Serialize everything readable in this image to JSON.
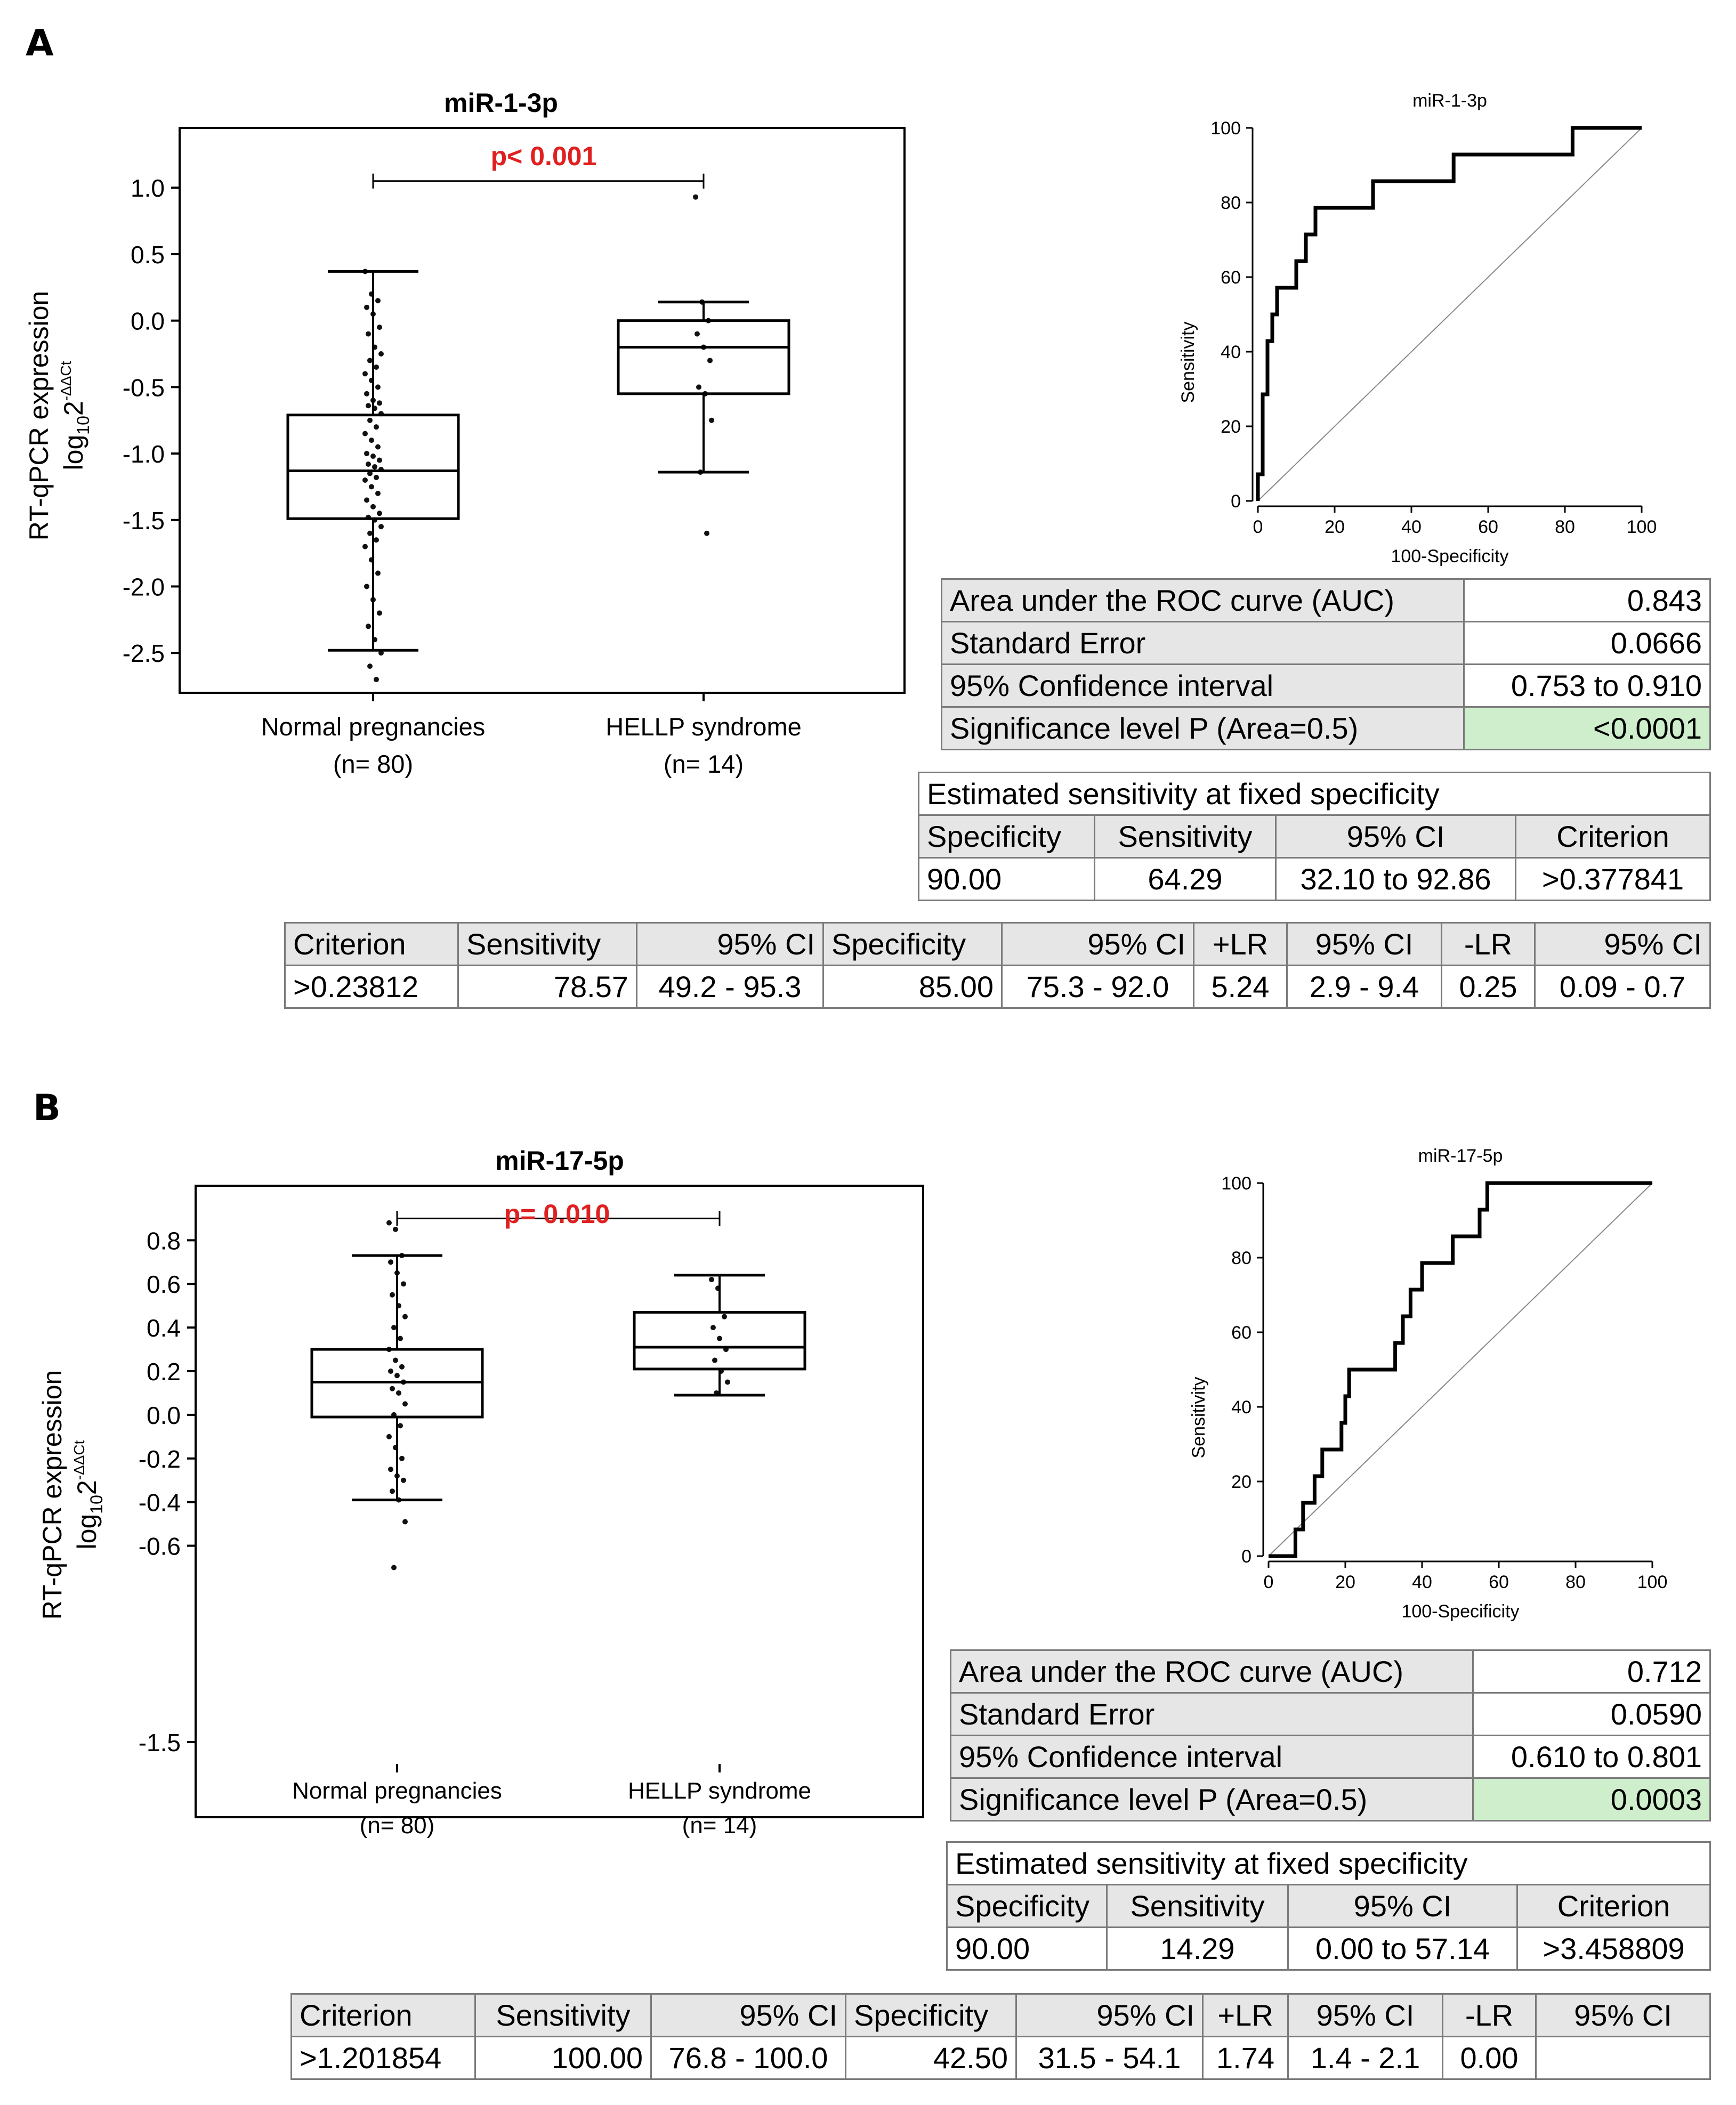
{
  "panels": [
    {
      "letter": "A",
      "box": {
        "title": "miR-1-3p",
        "pvalue": "p< 0.001",
        "ylabel_line1": "RT-qPCR expression",
        "ylabel_log": "log",
        "ylabel_sub": "10",
        "ylabel_base": "2",
        "ylabel_sup": "-ΔΔCt",
        "groups": [
          {
            "name": "Normal pregnancies",
            "n": "(n= 80)"
          },
          {
            "name": "HELLP syndrome",
            "n": "(n= 14)"
          }
        ]
      },
      "roc": {
        "title": "miR-1-3p",
        "xlabel": "100-Specificity",
        "ylabel": "Sensitivity"
      },
      "summary": [
        [
          "Area under the ROC curve (AUC)",
          "0.843"
        ],
        [
          "Standard Error",
          "0.0666"
        ],
        [
          "95% Confidence interval",
          "0.753 to 0.910"
        ],
        [
          "Significance level P (Area=0.5)",
          "<0.0001"
        ]
      ],
      "fixed": {
        "title": "Estimated sensitivity at fixed specificity",
        "headers": [
          "Specificity",
          "Sensitivity",
          "95% CI",
          "Criterion"
        ],
        "row": [
          "90.00",
          "64.29",
          "32.10 to 92.86",
          ">0.377841"
        ]
      },
      "criterion": {
        "headers": [
          "Criterion",
          "Sensitivity",
          "95% CI",
          "Specificity",
          "95% CI",
          "+LR",
          "95% CI",
          "-LR",
          "95% CI"
        ],
        "row": [
          ">0.23812",
          "78.57",
          "49.2 - 95.3",
          "85.00",
          "75.3 - 92.0",
          "5.24",
          "2.9 - 9.4",
          "0.25",
          "0.09 - 0.7"
        ]
      }
    },
    {
      "letter": "B",
      "box": {
        "title": "miR-17-5p",
        "pvalue": "p= 0.010",
        "ylabel_line1": "RT-qPCR expression",
        "ylabel_log": "log",
        "ylabel_sub": "10",
        "ylabel_base": "2",
        "ylabel_sup": "-ΔΔCt",
        "groups": [
          {
            "name": "Normal pregnancies",
            "n": "(n= 80)"
          },
          {
            "name": "HELLP syndrome",
            "n": "(n= 14)"
          }
        ]
      },
      "roc": {
        "title": "miR-17-5p",
        "xlabel": "100-Specificity",
        "ylabel": "Sensitivity"
      },
      "summary": [
        [
          "Area under the ROC curve (AUC)",
          "0.712"
        ],
        [
          "Standard Error",
          "0.0590"
        ],
        [
          "95% Confidence interval",
          "0.610 to 0.801"
        ],
        [
          "Significance level P (Area=0.5)",
          "0.0003"
        ]
      ],
      "fixed": {
        "title": "Estimated sensitivity at fixed specificity",
        "headers": [
          "Specificity",
          "Sensitivity",
          "95% CI",
          "Criterion"
        ],
        "row": [
          "90.00",
          "14.29",
          "0.00 to 57.14",
          ">3.458809"
        ]
      },
      "criterion": {
        "headers": [
          "Criterion",
          "Sensitivity",
          "95% CI",
          "Specificity",
          "95% CI",
          "+LR",
          "95% CI",
          "-LR",
          "95% CI"
        ],
        "row": [
          ">1.201854",
          "100.00",
          "76.8 - 100.0",
          "42.50",
          "31.5 - 54.1",
          "1.74",
          "1.4 - 2.1",
          "0.00",
          ""
        ]
      }
    }
  ],
  "chart_data": [
    {
      "type": "box",
      "title": "miR-1-3p",
      "ylabel": "RT-qPCR expression log10 2^-ΔΔCt",
      "categories": [
        "Normal pregnancies (n= 80)",
        "HELLP syndrome (n= 14)"
      ],
      "ylim": [
        -2.8,
        1.45
      ],
      "yticks": [
        1.0,
        0.5,
        0.0,
        -0.5,
        -1.0,
        -1.5,
        -2.0,
        -2.5
      ],
      "ytick_labels": [
        "1.0",
        "0.5",
        "0.0",
        "-0.5",
        "-1.0",
        "-1.5",
        "-2.0",
        "-2.5"
      ],
      "boxes": [
        {
          "whisker_low": -2.48,
          "q1": -1.49,
          "median": -1.13,
          "q3": -0.71,
          "whisker_high": 0.37
        },
        {
          "whisker_low": -1.14,
          "q1": -0.55,
          "median": -0.2,
          "q3": 0.0,
          "whisker_high": 0.14
        }
      ],
      "points": [
        [
          0.37,
          0.2,
          0.15,
          0.1,
          0.05,
          -0.05,
          -0.1,
          -0.2,
          -0.25,
          -0.3,
          -0.35,
          -0.4,
          -0.45,
          -0.5,
          -0.55,
          -0.6,
          -0.62,
          -0.64,
          -0.66,
          -0.7,
          -0.75,
          -0.8,
          -0.85,
          -0.9,
          -0.95,
          -1.0,
          -1.02,
          -1.05,
          -1.08,
          -1.1,
          -1.12,
          -1.15,
          -1.18,
          -1.2,
          -1.25,
          -1.3,
          -1.35,
          -1.4,
          -1.45,
          -1.48,
          -1.5,
          -1.55,
          -1.6,
          -1.65,
          -1.7,
          -1.8,
          -1.9,
          -2.0,
          -2.1,
          -2.2,
          -2.3,
          -2.4,
          -2.5,
          -2.6,
          -2.7
        ],
        [
          0.93,
          0.14,
          0.0,
          -0.1,
          -0.2,
          -0.3,
          -0.5,
          -0.55,
          -0.75,
          -1.14,
          -1.6
        ]
      ],
      "significance": "p< 0.001",
      "bracket_y": 1.05
    },
    {
      "type": "line",
      "title": "miR-1-3p",
      "xlabel": "100-Specificity",
      "ylabel": "Sensitivity",
      "xlim": [
        0,
        100
      ],
      "ylim": [
        0,
        100
      ],
      "xticks": [
        0,
        20,
        40,
        60,
        80,
        100
      ],
      "yticks": [
        0,
        20,
        40,
        60,
        80,
        100
      ],
      "series": [
        {
          "x": [
            0,
            0,
            1.25,
            1.25,
            2.5,
            2.5,
            3.75,
            3.75,
            5,
            5,
            10,
            10,
            12.5,
            12.5,
            15,
            15,
            30,
            30,
            51,
            51,
            82,
            82,
            100
          ],
          "y": [
            0,
            7.14,
            7.14,
            28.57,
            28.57,
            42.86,
            42.86,
            50,
            50,
            57.14,
            57.14,
            64.29,
            64.29,
            71.43,
            71.43,
            78.57,
            78.57,
            85.71,
            85.71,
            92.86,
            92.86,
            100,
            100
          ]
        },
        {
          "x": [
            0,
            100
          ],
          "y": [
            0,
            100
          ]
        }
      ]
    },
    {
      "type": "box",
      "title": "miR-17-5p",
      "ylabel": "RT-qPCR expression log10 2^-ΔΔCt",
      "categories": [
        "Normal pregnancies (n= 80)",
        "HELLP syndrome (n= 14)"
      ],
      "ylim": [
        -1.6,
        1.05
      ],
      "yticks": [
        0.8,
        0.6,
        0.4,
        0.2,
        0.0,
        -0.2,
        -0.4,
        -0.6,
        -1.5
      ],
      "ytick_labels": [
        "0.8",
        "0.6",
        "0.4",
        "0.2",
        "0.0",
        "-0.2",
        "-0.4",
        "-0.6",
        "-1.5"
      ],
      "boxes": [
        {
          "whisker_low": -0.39,
          "q1": -0.01,
          "median": 0.15,
          "q3": 0.3,
          "whisker_high": 0.73
        },
        {
          "whisker_low": 0.09,
          "q1": 0.21,
          "median": 0.31,
          "q3": 0.47,
          "whisker_high": 0.64
        }
      ],
      "points": [
        [
          0.88,
          0.85,
          0.73,
          0.7,
          0.65,
          0.6,
          0.55,
          0.5,
          0.45,
          0.4,
          0.35,
          0.3,
          0.25,
          0.22,
          0.2,
          0.18,
          0.15,
          0.12,
          0.1,
          0.05,
          0.0,
          -0.05,
          -0.1,
          -0.15,
          -0.2,
          -0.25,
          -0.28,
          -0.3,
          -0.35,
          -0.39,
          -0.49,
          -0.7
        ],
        [
          0.62,
          0.58,
          0.45,
          0.4,
          0.35,
          0.3,
          0.25,
          0.2,
          0.15,
          0.1
        ]
      ],
      "significance": "p= 0.010",
      "bracket_y": 0.9
    },
    {
      "type": "line",
      "title": "miR-17-5p",
      "xlabel": "100-Specificity",
      "ylabel": "Sensitivity",
      "xlim": [
        0,
        100
      ],
      "ylim": [
        0,
        100
      ],
      "xticks": [
        0,
        20,
        40,
        60,
        80,
        100
      ],
      "yticks": [
        0,
        20,
        40,
        60,
        80,
        100
      ],
      "series": [
        {
          "x": [
            0,
            7,
            7,
            9,
            9,
            12,
            12,
            14,
            14,
            19,
            19,
            20,
            20,
            21,
            21,
            33,
            33,
            35,
            35,
            37,
            37,
            40,
            40,
            48,
            48,
            50,
            50,
            55,
            55,
            57,
            57,
            100
          ],
          "y": [
            0,
            0,
            7.14,
            7.14,
            14.29,
            14.29,
            21.43,
            21.43,
            28.57,
            28.57,
            35.71,
            35.71,
            42.86,
            42.86,
            50,
            50,
            57.14,
            57.14,
            64.29,
            64.29,
            71.43,
            71.43,
            78.57,
            78.57,
            85.71,
            85.71,
            85.71,
            85.71,
            92.86,
            92.86,
            100,
            100
          ]
        },
        {
          "x": [
            0,
            100
          ],
          "y": [
            0,
            100
          ]
        }
      ]
    }
  ]
}
